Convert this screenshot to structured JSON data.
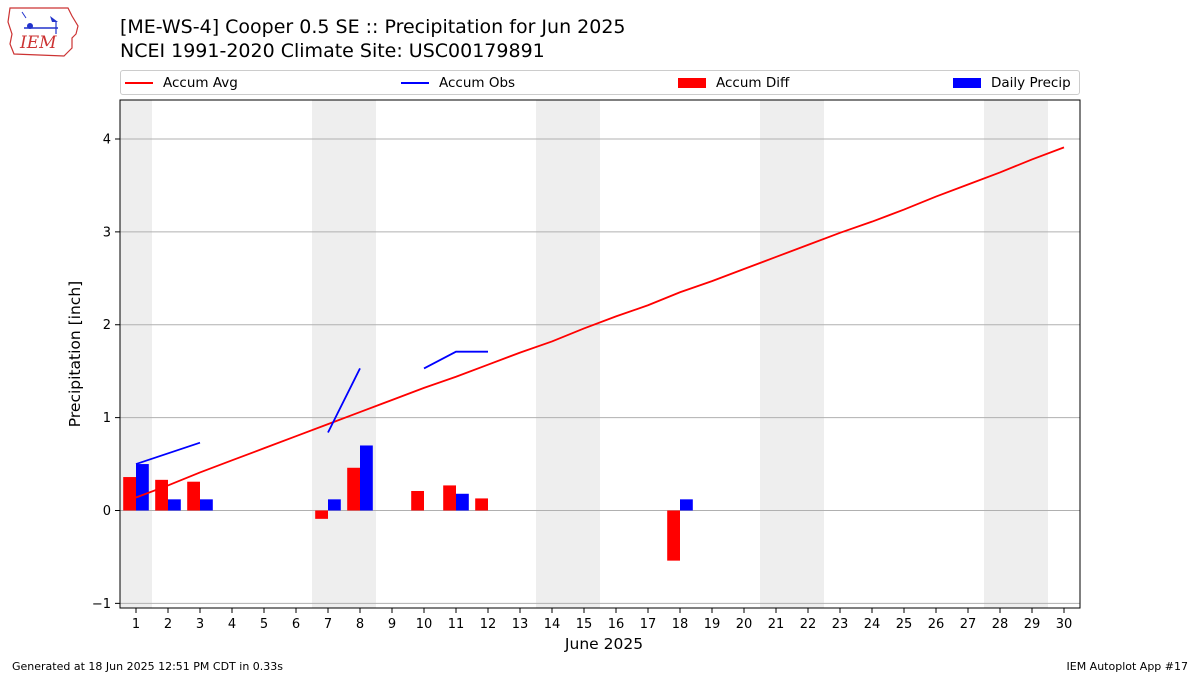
{
  "header": {
    "title_line1": "[ME-WS-4] Cooper 0.5 SE :: Precipitation for Jun 2025",
    "title_line2": "NCEI 1991-2020 Climate Site: USC00179891"
  },
  "logo": {
    "text": "IEM",
    "icon": "iowa-state-outline-logo"
  },
  "footer": {
    "left": "Generated at 18 Jun 2025 12:51 PM CDT in 0.33s",
    "right": "IEM Autoplot App #17"
  },
  "colors": {
    "accum_avg": "#ff0000",
    "accum_obs": "#0000ff",
    "accum_diff": "#ff0000",
    "daily_precip": "#0000ff",
    "weekend_band": "#eeeeee",
    "grid": "#b0b0b0"
  },
  "chart_data": {
    "type": "bar",
    "xlabel": "June 2025",
    "ylabel": "Precipitation [inch]",
    "xlim": [
      0.5,
      30.5
    ],
    "ylim": [
      -1.05,
      4.42
    ],
    "grid": "horizontal",
    "legend_placement": "top",
    "x_ticks": [
      1,
      2,
      3,
      4,
      5,
      6,
      7,
      8,
      9,
      10,
      11,
      12,
      13,
      14,
      15,
      16,
      17,
      18,
      19,
      20,
      21,
      22,
      23,
      24,
      25,
      26,
      27,
      28,
      29,
      30
    ],
    "y_ticks": [
      -1,
      0,
      1,
      2,
      3,
      4
    ],
    "weekend_bands": [
      [
        0.5,
        1.5
      ],
      [
        6.5,
        8.5
      ],
      [
        13.5,
        15.5
      ],
      [
        20.5,
        22.5
      ],
      [
        27.5,
        29.5
      ]
    ],
    "series": [
      {
        "name": "Accum Avg",
        "kind": "line",
        "x": [
          1,
          2,
          3,
          4,
          5,
          6,
          7,
          8,
          9,
          10,
          11,
          12,
          13,
          14,
          15,
          16,
          17,
          18,
          19,
          20,
          21,
          22,
          23,
          24,
          25,
          26,
          27,
          28,
          29,
          30
        ],
        "values": [
          0.14,
          0.27,
          0.41,
          0.54,
          0.67,
          0.8,
          0.93,
          1.06,
          1.19,
          1.32,
          1.44,
          1.57,
          1.7,
          1.82,
          1.96,
          2.09,
          2.21,
          2.35,
          2.47,
          2.6,
          2.73,
          2.86,
          2.99,
          3.11,
          3.24,
          3.38,
          3.51,
          3.64,
          3.78,
          3.91
        ]
      },
      {
        "name": "Accum Obs",
        "kind": "line",
        "segments": [
          {
            "x": [
              1,
              3
            ],
            "values": [
              0.5,
              0.73
            ]
          },
          {
            "x": [
              7,
              8
            ],
            "values": [
              0.84,
              1.53
            ]
          },
          {
            "x": [
              10,
              11,
              12
            ],
            "values": [
              1.53,
              1.71,
              1.71
            ]
          }
        ]
      },
      {
        "name": "Accum Diff",
        "kind": "bar",
        "x": [
          1,
          2,
          3,
          7,
          8,
          10,
          11,
          12,
          18
        ],
        "values": [
          0.36,
          0.33,
          0.31,
          -0.09,
          0.46,
          0.21,
          0.27,
          0.13,
          -0.54
        ]
      },
      {
        "name": "Daily Precip",
        "kind": "bar",
        "x": [
          1,
          2,
          3,
          7,
          8,
          11,
          18
        ],
        "values": [
          0.5,
          0.12,
          0.12,
          0.12,
          0.7,
          0.18,
          0.12
        ]
      }
    ]
  }
}
